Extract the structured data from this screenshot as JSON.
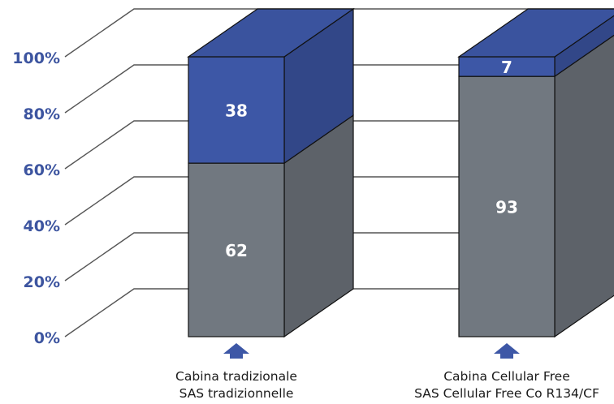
{
  "chart_data": {
    "type": "bar",
    "stacked": true,
    "percent_axis": true,
    "categories": [
      [
        "Cabina tradizionale",
        "SAS tradizionnelle"
      ],
      [
        "Cabina Cellular Free",
        "SAS Cellular Free Co R134/CF"
      ]
    ],
    "series": [
      {
        "values": [
          62,
          93
        ],
        "color": "#717880"
      },
      {
        "values": [
          38,
          7
        ],
        "color": "#3d57a6"
      }
    ],
    "y_ticks": [
      "0%",
      "20%",
      "40%",
      "60%",
      "80%",
      "100%"
    ],
    "ylim": [
      0,
      100
    ],
    "grid": true,
    "title": "",
    "xlabel": "",
    "ylabel": ""
  }
}
